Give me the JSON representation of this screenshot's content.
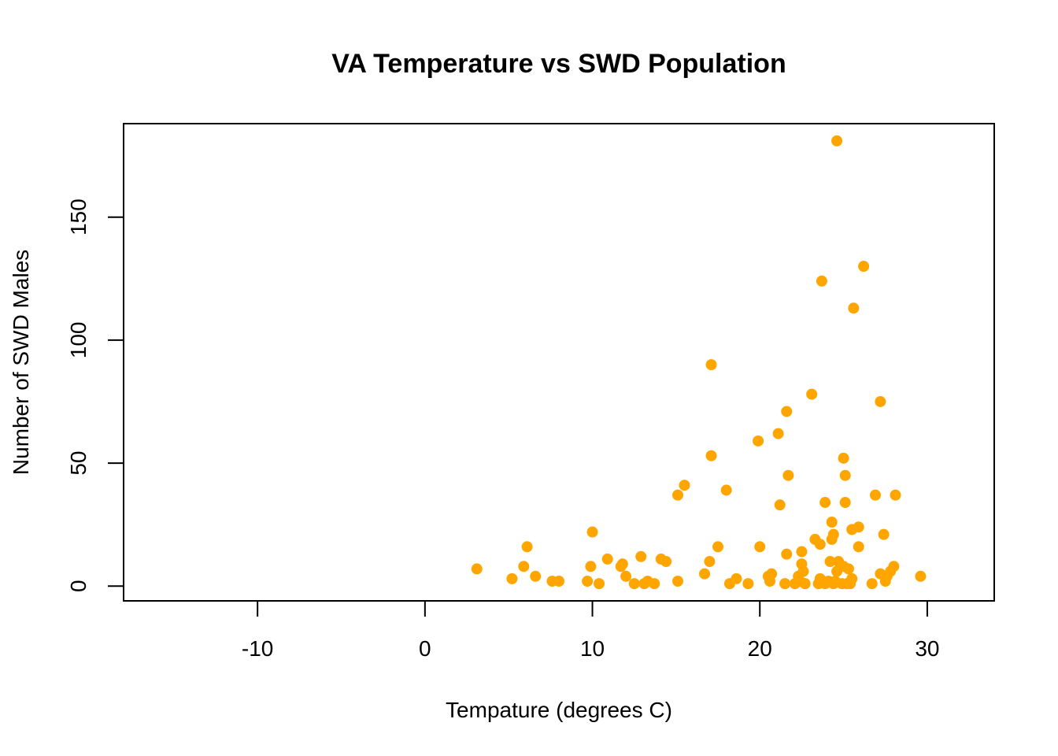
{
  "chart_data": {
    "type": "scatter",
    "title": "VA Temperature vs SWD Population",
    "xlabel": "Tempature (degrees C)",
    "ylabel": "Number of SWD Males",
    "xlim": [
      -18,
      34
    ],
    "ylim": [
      -6,
      188
    ],
    "x_ticks": [
      -10,
      0,
      10,
      20,
      30
    ],
    "y_ticks": [
      0,
      50,
      100,
      150
    ],
    "grid": false,
    "point_color": "#FFA500",
    "points": [
      {
        "x": 3.1,
        "y": 7
      },
      {
        "x": 5.2,
        "y": 3
      },
      {
        "x": 5.9,
        "y": 8
      },
      {
        "x": 6.1,
        "y": 16
      },
      {
        "x": 6.6,
        "y": 4
      },
      {
        "x": 7.6,
        "y": 2
      },
      {
        "x": 8.0,
        "y": 2
      },
      {
        "x": 9.7,
        "y": 2
      },
      {
        "x": 9.9,
        "y": 8
      },
      {
        "x": 10.0,
        "y": 22
      },
      {
        "x": 10.4,
        "y": 1
      },
      {
        "x": 10.9,
        "y": 11
      },
      {
        "x": 11.7,
        "y": 8
      },
      {
        "x": 11.8,
        "y": 9
      },
      {
        "x": 12.0,
        "y": 4
      },
      {
        "x": 12.5,
        "y": 1
      },
      {
        "x": 12.9,
        "y": 12
      },
      {
        "x": 13.1,
        "y": 1
      },
      {
        "x": 13.3,
        "y": 2
      },
      {
        "x": 13.7,
        "y": 1
      },
      {
        "x": 14.1,
        "y": 11
      },
      {
        "x": 14.4,
        "y": 10
      },
      {
        "x": 15.1,
        "y": 2
      },
      {
        "x": 15.1,
        "y": 37
      },
      {
        "x": 15.5,
        "y": 41
      },
      {
        "x": 16.7,
        "y": 5
      },
      {
        "x": 17.0,
        "y": 10
      },
      {
        "x": 17.1,
        "y": 53
      },
      {
        "x": 17.1,
        "y": 90
      },
      {
        "x": 17.5,
        "y": 16
      },
      {
        "x": 18.0,
        "y": 39
      },
      {
        "x": 18.2,
        "y": 1
      },
      {
        "x": 18.6,
        "y": 3
      },
      {
        "x": 19.3,
        "y": 1
      },
      {
        "x": 19.9,
        "y": 59
      },
      {
        "x": 20.0,
        "y": 16
      },
      {
        "x": 20.5,
        "y": 4
      },
      {
        "x": 20.6,
        "y": 2
      },
      {
        "x": 20.7,
        "y": 5
      },
      {
        "x": 21.1,
        "y": 62
      },
      {
        "x": 21.2,
        "y": 33
      },
      {
        "x": 21.5,
        "y": 1
      },
      {
        "x": 21.6,
        "y": 71
      },
      {
        "x": 21.6,
        "y": 13
      },
      {
        "x": 21.7,
        "y": 45
      },
      {
        "x": 22.1,
        "y": 1
      },
      {
        "x": 22.3,
        "y": 4
      },
      {
        "x": 22.4,
        "y": 2
      },
      {
        "x": 22.5,
        "y": 14
      },
      {
        "x": 22.5,
        "y": 9
      },
      {
        "x": 22.6,
        "y": 6
      },
      {
        "x": 22.7,
        "y": 1
      },
      {
        "x": 23.1,
        "y": 78
      },
      {
        "x": 23.3,
        "y": 19
      },
      {
        "x": 23.5,
        "y": 1
      },
      {
        "x": 23.6,
        "y": 17
      },
      {
        "x": 23.6,
        "y": 3
      },
      {
        "x": 23.7,
        "y": 124
      },
      {
        "x": 23.9,
        "y": 34
      },
      {
        "x": 23.9,
        "y": 1
      },
      {
        "x": 24.1,
        "y": 2
      },
      {
        "x": 24.2,
        "y": 10
      },
      {
        "x": 24.3,
        "y": 26
      },
      {
        "x": 24.3,
        "y": 19
      },
      {
        "x": 24.4,
        "y": 21
      },
      {
        "x": 24.4,
        "y": 1
      },
      {
        "x": 24.5,
        "y": 2
      },
      {
        "x": 24.6,
        "y": 181
      },
      {
        "x": 24.6,
        "y": 6
      },
      {
        "x": 24.7,
        "y": 10
      },
      {
        "x": 24.9,
        "y": 1
      },
      {
        "x": 25.0,
        "y": 52
      },
      {
        "x": 25.0,
        "y": 8
      },
      {
        "x": 25.1,
        "y": 45
      },
      {
        "x": 25.1,
        "y": 34
      },
      {
        "x": 25.2,
        "y": 1
      },
      {
        "x": 25.3,
        "y": 7
      },
      {
        "x": 25.4,
        "y": 1
      },
      {
        "x": 25.5,
        "y": 3
      },
      {
        "x": 25.5,
        "y": 23
      },
      {
        "x": 25.6,
        "y": 113
      },
      {
        "x": 25.9,
        "y": 24
      },
      {
        "x": 25.9,
        "y": 16
      },
      {
        "x": 26.2,
        "y": 130
      },
      {
        "x": 26.7,
        "y": 1
      },
      {
        "x": 26.9,
        "y": 37
      },
      {
        "x": 27.2,
        "y": 75
      },
      {
        "x": 27.2,
        "y": 5
      },
      {
        "x": 27.4,
        "y": 21
      },
      {
        "x": 27.5,
        "y": 2
      },
      {
        "x": 27.6,
        "y": 4
      },
      {
        "x": 27.8,
        "y": 6
      },
      {
        "x": 28.0,
        "y": 8
      },
      {
        "x": 28.1,
        "y": 37
      },
      {
        "x": 29.6,
        "y": 4
      }
    ]
  }
}
